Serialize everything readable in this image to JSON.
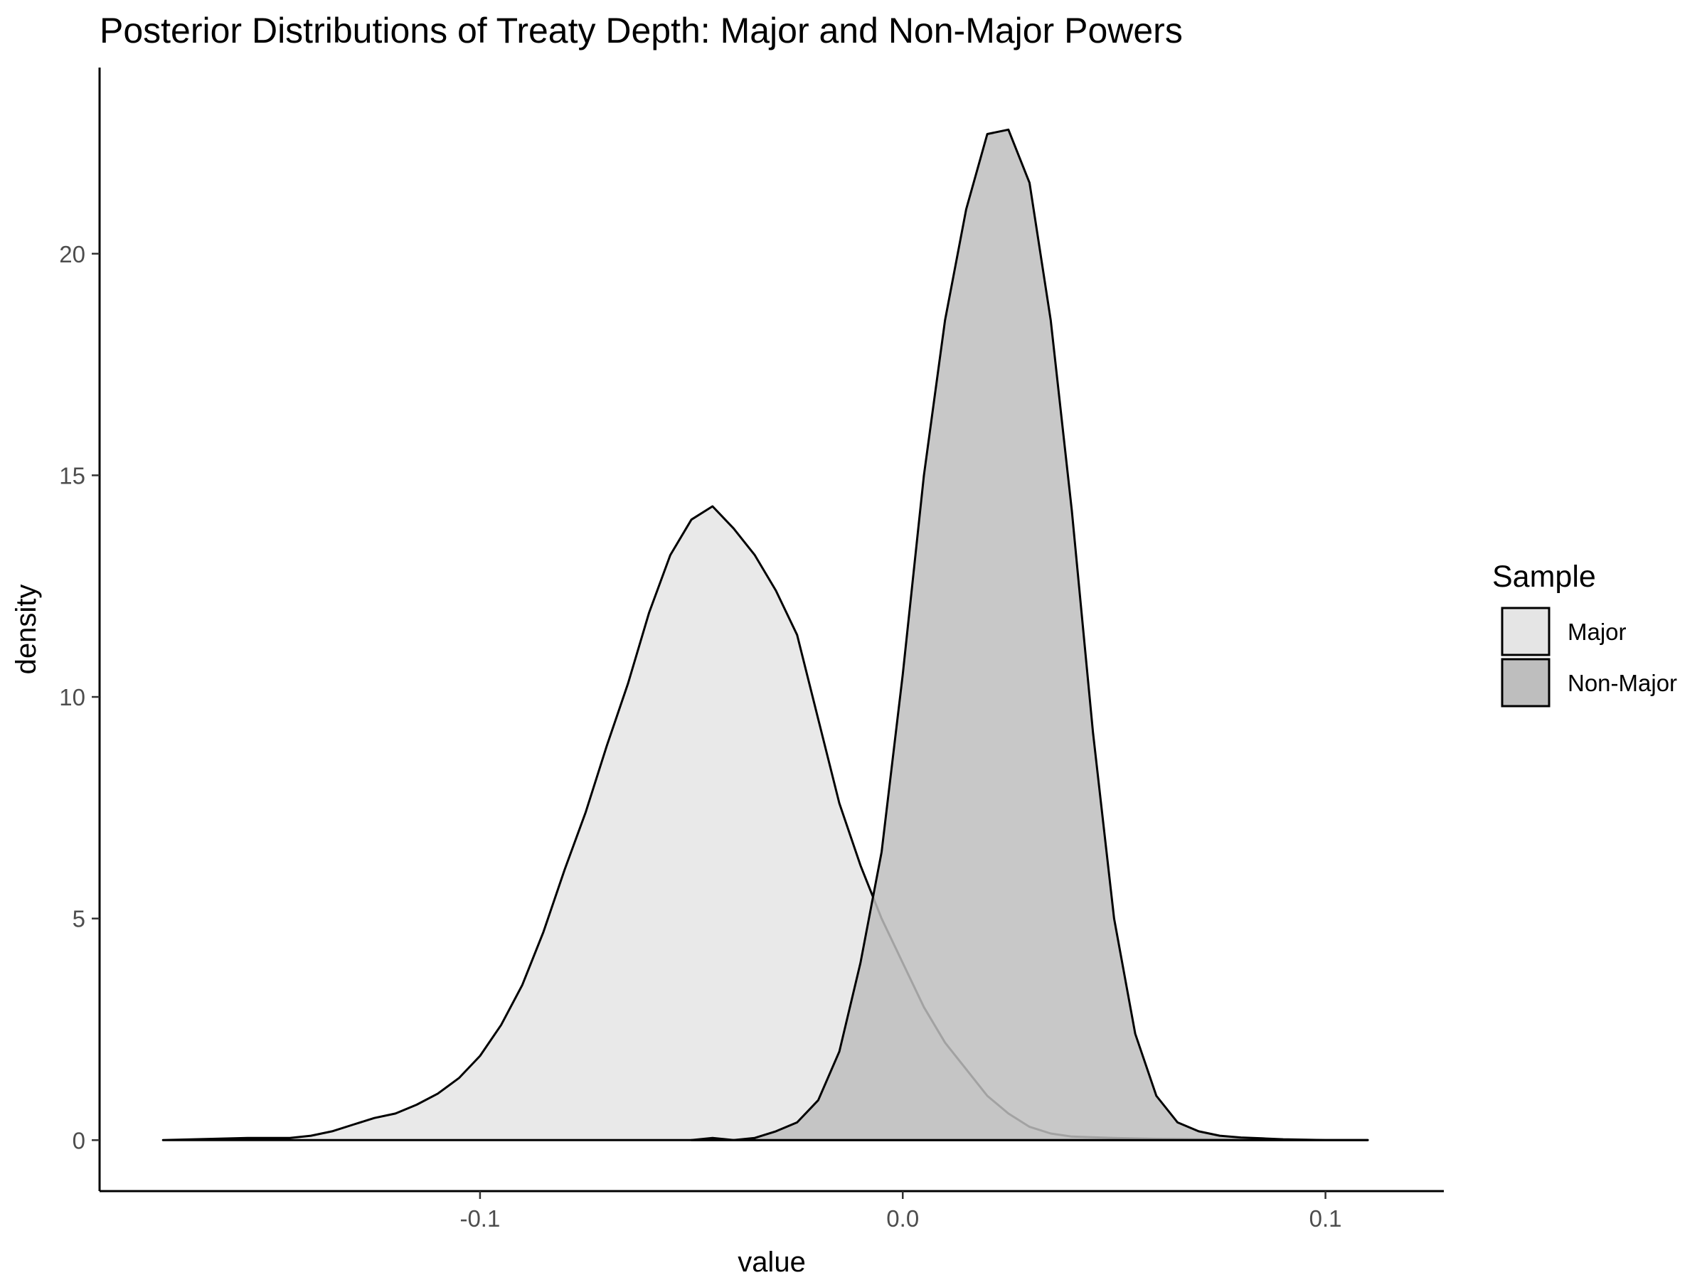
{
  "chart_data": {
    "type": "area",
    "title": "Posterior Distributions of Treaty Depth: Major and Non-Major Powers",
    "xlabel": "value",
    "ylabel": "density",
    "xlim": [
      -0.19,
      0.128
    ],
    "ylim": [
      -1.15,
      24.2
    ],
    "x_ticks": [
      {
        "value": -0.1,
        "label": "-0.1"
      },
      {
        "value": 0.0,
        "label": "0.0"
      },
      {
        "value": 0.1,
        "label": "0.1"
      }
    ],
    "y_ticks": [
      {
        "value": 0,
        "label": "0"
      },
      {
        "value": 5,
        "label": "5"
      },
      {
        "value": 10,
        "label": "10"
      },
      {
        "value": 15,
        "label": "15"
      },
      {
        "value": 20,
        "label": "20"
      }
    ],
    "grid": false,
    "legend": {
      "title": "Sample",
      "position": "right"
    },
    "series": [
      {
        "name": "Major",
        "color": "#e5e5e5",
        "x": [
          -0.175,
          -0.155,
          -0.145,
          -0.14,
          -0.135,
          -0.13,
          -0.125,
          -0.12,
          -0.115,
          -0.11,
          -0.105,
          -0.1,
          -0.095,
          -0.09,
          -0.085,
          -0.08,
          -0.075,
          -0.07,
          -0.065,
          -0.06,
          -0.055,
          -0.05,
          -0.045,
          -0.04,
          -0.035,
          -0.03,
          -0.025,
          -0.02,
          -0.015,
          -0.01,
          -0.005,
          0.0,
          0.005,
          0.01,
          0.015,
          0.02,
          0.025,
          0.03,
          0.035,
          0.04,
          0.05,
          0.06,
          0.07,
          0.08,
          0.09,
          0.11
        ],
        "values": [
          0.0,
          0.05,
          0.05,
          0.1,
          0.2,
          0.35,
          0.5,
          0.6,
          0.8,
          1.05,
          1.4,
          1.9,
          2.6,
          3.5,
          4.7,
          6.1,
          7.4,
          8.9,
          10.3,
          11.9,
          13.2,
          14.0,
          14.3,
          13.8,
          13.2,
          12.4,
          11.4,
          9.5,
          7.6,
          6.2,
          5.0,
          4.0,
          3.0,
          2.2,
          1.6,
          1.0,
          0.6,
          0.3,
          0.15,
          0.08,
          0.05,
          0.03,
          0.02,
          0.01,
          0.0,
          0.0
        ]
      },
      {
        "name": "Non-Major",
        "color": "#bebebe",
        "x": [
          -0.05,
          -0.045,
          -0.04,
          -0.035,
          -0.03,
          -0.025,
          -0.02,
          -0.015,
          -0.01,
          -0.005,
          0.0,
          0.005,
          0.01,
          0.015,
          0.02,
          0.025,
          0.03,
          0.035,
          0.04,
          0.045,
          0.05,
          0.055,
          0.06,
          0.065,
          0.07,
          0.075,
          0.08,
          0.085,
          0.09,
          0.1,
          0.11
        ],
        "values": [
          0.0,
          0.05,
          0.0,
          0.05,
          0.2,
          0.4,
          0.9,
          2.0,
          4.0,
          6.5,
          10.5,
          15.0,
          18.5,
          21.0,
          22.7,
          22.8,
          21.6,
          18.5,
          14.2,
          9.2,
          5.0,
          2.4,
          1.0,
          0.4,
          0.2,
          0.1,
          0.06,
          0.04,
          0.02,
          0.0,
          0.0
        ]
      }
    ]
  }
}
